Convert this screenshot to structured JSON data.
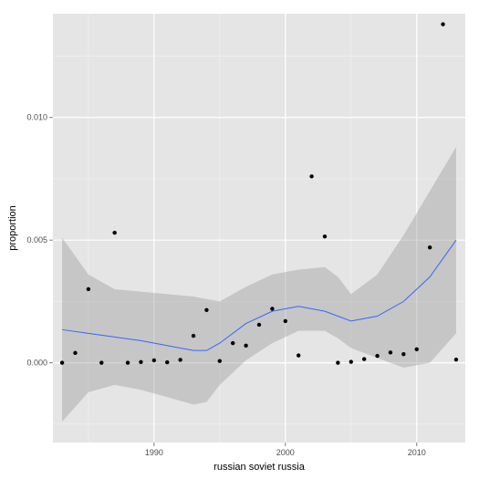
{
  "chart_data": {
    "type": "scatter",
    "title": "",
    "xlabel": "russian soviet russia",
    "ylabel": "proportion",
    "xlim": [
      1982.3,
      2013.7
    ],
    "ylim": [
      -0.00325,
      0.01423
    ],
    "x_ticks": [
      1990,
      2000,
      2010
    ],
    "x_tick_labels": [
      "1990",
      "2000",
      "2010"
    ],
    "y_ticks": [
      0.0,
      0.005,
      0.01
    ],
    "y_tick_labels": [
      "0.000",
      "0.005",
      "0.010"
    ],
    "grid": true,
    "legend": "none",
    "points": {
      "x": [
        1983,
        1984,
        1985,
        1986,
        1987,
        1988,
        1989,
        1990,
        1991,
        1992,
        1993,
        1994,
        1995,
        1996,
        1997,
        1998,
        1999,
        2000,
        2001,
        2002,
        2003,
        2004,
        2005,
        2006,
        2007,
        2008,
        2009,
        2010,
        2011,
        2012,
        2013
      ],
      "y": [
        0.0,
        0.0004,
        0.003,
        0.0,
        0.0053,
        0.0,
        3e-05,
        0.0001,
        2e-05,
        0.00012,
        0.0011,
        0.00215,
        7e-05,
        0.0008,
        0.0007,
        0.00155,
        0.0022,
        0.0017,
        0.0003,
        0.0076,
        0.00515,
        0.0,
        4e-05,
        0.00015,
        0.00028,
        0.00042,
        0.00035,
        0.00055,
        0.0047,
        0.0138,
        0.00013
      ]
    },
    "smooth": {
      "x": [
        1983,
        1985,
        1987,
        1989,
        1991,
        1993,
        1994,
        1995,
        1997,
        1999,
        2001,
        2003,
        2004,
        2005,
        2007,
        2009,
        2011,
        2013
      ],
      "y": [
        0.00135,
        0.0012,
        0.00105,
        0.0009,
        0.0007,
        0.0005,
        0.0005,
        0.0008,
        0.0016,
        0.0021,
        0.0023,
        0.0021,
        0.0019,
        0.0017,
        0.0019,
        0.0025,
        0.0035,
        0.005
      ],
      "lower": [
        -0.0024,
        -0.0012,
        -0.0009,
        -0.0011,
        -0.0014,
        -0.0017,
        -0.0016,
        -0.0009,
        0.0001,
        0.0008,
        0.0013,
        0.0013,
        0.001,
        0.0006,
        0.0002,
        -0.0002,
        0.0,
        0.0012
      ],
      "upper": [
        0.0051,
        0.0036,
        0.003,
        0.0029,
        0.0028,
        0.0027,
        0.0026,
        0.0025,
        0.0031,
        0.0036,
        0.0038,
        0.0039,
        0.0035,
        0.0028,
        0.0036,
        0.0052,
        0.007,
        0.0088
      ]
    },
    "colors": {
      "panel": "#e5e5e5",
      "grid_major": "#ffffff",
      "grid_minor": "#f2f2f2",
      "point": "#000000",
      "smooth_line": "#3366ff",
      "ribbon": "#999999"
    }
  }
}
